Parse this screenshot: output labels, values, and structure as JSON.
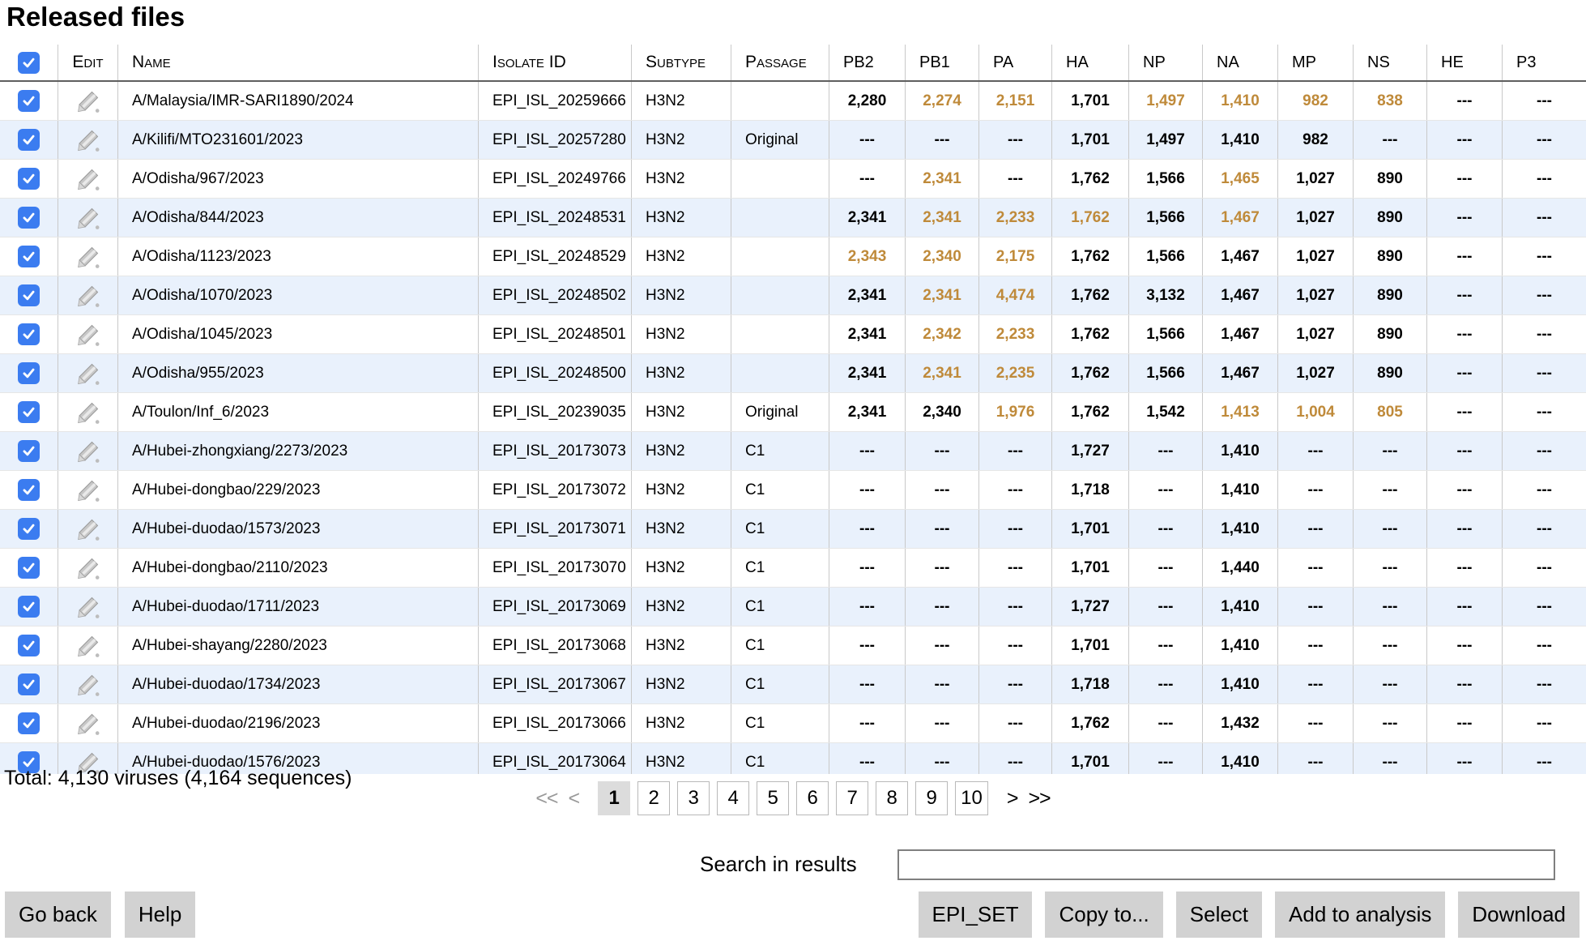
{
  "header": {
    "title": "Released files"
  },
  "colors": {
    "accent_checkbox": "#3b7cf0",
    "highlight_number": "#bf8a3a",
    "row_alt_background": "#e9f1fc"
  },
  "icons": {
    "edit": "pencil-icon",
    "checkbox": "checkmark-icon"
  },
  "table": {
    "select_all_checked": true,
    "columns": [
      {
        "label": ""
      },
      {
        "label": "Edit"
      },
      {
        "label": "Name"
      },
      {
        "label": "Isolate ID"
      },
      {
        "label": "Subtype"
      },
      {
        "label": "Passage"
      },
      {
        "label": "PB2"
      },
      {
        "label": "PB1"
      },
      {
        "label": "PA"
      },
      {
        "label": "HA"
      },
      {
        "label": "NP"
      },
      {
        "label": "NA"
      },
      {
        "label": "MP"
      },
      {
        "label": "NS"
      },
      {
        "label": "HE"
      },
      {
        "label": "P3"
      }
    ],
    "rows": [
      {
        "checked": true,
        "name": "A/Malaysia/IMR-SARI1890/2024",
        "isolate_id": "EPI_ISL_20259666",
        "subtype": "H3N2",
        "passage": "",
        "genes": [
          {
            "v": "2,280",
            "hl": false
          },
          {
            "v": "2,274",
            "hl": true
          },
          {
            "v": "2,151",
            "hl": true
          },
          {
            "v": "1,701",
            "hl": false
          },
          {
            "v": "1,497",
            "hl": true
          },
          {
            "v": "1,410",
            "hl": true
          },
          {
            "v": "982",
            "hl": true
          },
          {
            "v": "838",
            "hl": true
          },
          {
            "v": "---",
            "hl": false
          },
          {
            "v": "---",
            "hl": false
          }
        ]
      },
      {
        "checked": true,
        "name": "A/Kilifi/MTO231601/2023",
        "isolate_id": "EPI_ISL_20257280",
        "subtype": "H3N2",
        "passage": "Original",
        "genes": [
          {
            "v": "---",
            "hl": false
          },
          {
            "v": "---",
            "hl": false
          },
          {
            "v": "---",
            "hl": false
          },
          {
            "v": "1,701",
            "hl": false
          },
          {
            "v": "1,497",
            "hl": false
          },
          {
            "v": "1,410",
            "hl": false
          },
          {
            "v": "982",
            "hl": false
          },
          {
            "v": "---",
            "hl": false
          },
          {
            "v": "---",
            "hl": false
          },
          {
            "v": "---",
            "hl": false
          }
        ]
      },
      {
        "checked": true,
        "name": "A/Odisha/967/2023",
        "isolate_id": "EPI_ISL_20249766",
        "subtype": "H3N2",
        "passage": "",
        "genes": [
          {
            "v": "---",
            "hl": false
          },
          {
            "v": "2,341",
            "hl": true
          },
          {
            "v": "---",
            "hl": false
          },
          {
            "v": "1,762",
            "hl": false
          },
          {
            "v": "1,566",
            "hl": false
          },
          {
            "v": "1,465",
            "hl": true
          },
          {
            "v": "1,027",
            "hl": false
          },
          {
            "v": "890",
            "hl": false
          },
          {
            "v": "---",
            "hl": false
          },
          {
            "v": "---",
            "hl": false
          }
        ]
      },
      {
        "checked": true,
        "name": "A/Odisha/844/2023",
        "isolate_id": "EPI_ISL_20248531",
        "subtype": "H3N2",
        "passage": "",
        "genes": [
          {
            "v": "2,341",
            "hl": false
          },
          {
            "v": "2,341",
            "hl": true
          },
          {
            "v": "2,233",
            "hl": true
          },
          {
            "v": "1,762",
            "hl": true
          },
          {
            "v": "1,566",
            "hl": false
          },
          {
            "v": "1,467",
            "hl": true
          },
          {
            "v": "1,027",
            "hl": false
          },
          {
            "v": "890",
            "hl": false
          },
          {
            "v": "---",
            "hl": false
          },
          {
            "v": "---",
            "hl": false
          }
        ]
      },
      {
        "checked": true,
        "name": "A/Odisha/1123/2023",
        "isolate_id": "EPI_ISL_20248529",
        "subtype": "H3N2",
        "passage": "",
        "genes": [
          {
            "v": "2,343",
            "hl": true
          },
          {
            "v": "2,340",
            "hl": true
          },
          {
            "v": "2,175",
            "hl": true
          },
          {
            "v": "1,762",
            "hl": false
          },
          {
            "v": "1,566",
            "hl": false
          },
          {
            "v": "1,467",
            "hl": false
          },
          {
            "v": "1,027",
            "hl": false
          },
          {
            "v": "890",
            "hl": false
          },
          {
            "v": "---",
            "hl": false
          },
          {
            "v": "---",
            "hl": false
          }
        ]
      },
      {
        "checked": true,
        "name": "A/Odisha/1070/2023",
        "isolate_id": "EPI_ISL_20248502",
        "subtype": "H3N2",
        "passage": "",
        "genes": [
          {
            "v": "2,341",
            "hl": false
          },
          {
            "v": "2,341",
            "hl": true
          },
          {
            "v": "4,474",
            "hl": true
          },
          {
            "v": "1,762",
            "hl": false
          },
          {
            "v": "3,132",
            "hl": false
          },
          {
            "v": "1,467",
            "hl": false
          },
          {
            "v": "1,027",
            "hl": false
          },
          {
            "v": "890",
            "hl": false
          },
          {
            "v": "---",
            "hl": false
          },
          {
            "v": "---",
            "hl": false
          }
        ]
      },
      {
        "checked": true,
        "name": "A/Odisha/1045/2023",
        "isolate_id": "EPI_ISL_20248501",
        "subtype": "H3N2",
        "passage": "",
        "genes": [
          {
            "v": "2,341",
            "hl": false
          },
          {
            "v": "2,342",
            "hl": true
          },
          {
            "v": "2,233",
            "hl": true
          },
          {
            "v": "1,762",
            "hl": false
          },
          {
            "v": "1,566",
            "hl": false
          },
          {
            "v": "1,467",
            "hl": false
          },
          {
            "v": "1,027",
            "hl": false
          },
          {
            "v": "890",
            "hl": false
          },
          {
            "v": "---",
            "hl": false
          },
          {
            "v": "---",
            "hl": false
          }
        ]
      },
      {
        "checked": true,
        "name": "A/Odisha/955/2023",
        "isolate_id": "EPI_ISL_20248500",
        "subtype": "H3N2",
        "passage": "",
        "genes": [
          {
            "v": "2,341",
            "hl": false
          },
          {
            "v": "2,341",
            "hl": true
          },
          {
            "v": "2,235",
            "hl": true
          },
          {
            "v": "1,762",
            "hl": false
          },
          {
            "v": "1,566",
            "hl": false
          },
          {
            "v": "1,467",
            "hl": false
          },
          {
            "v": "1,027",
            "hl": false
          },
          {
            "v": "890",
            "hl": false
          },
          {
            "v": "---",
            "hl": false
          },
          {
            "v": "---",
            "hl": false
          }
        ]
      },
      {
        "checked": true,
        "name": "A/Toulon/Inf_6/2023",
        "isolate_id": "EPI_ISL_20239035",
        "subtype": "H3N2",
        "passage": "Original",
        "genes": [
          {
            "v": "2,341",
            "hl": false
          },
          {
            "v": "2,340",
            "hl": false
          },
          {
            "v": "1,976",
            "hl": true
          },
          {
            "v": "1,762",
            "hl": false
          },
          {
            "v": "1,542",
            "hl": false
          },
          {
            "v": "1,413",
            "hl": true
          },
          {
            "v": "1,004",
            "hl": true
          },
          {
            "v": "805",
            "hl": true
          },
          {
            "v": "---",
            "hl": false
          },
          {
            "v": "---",
            "hl": false
          }
        ]
      },
      {
        "checked": true,
        "name": "A/Hubei-zhongxiang/2273/2023",
        "isolate_id": "EPI_ISL_20173073",
        "subtype": "H3N2",
        "passage": "C1",
        "genes": [
          {
            "v": "---",
            "hl": false
          },
          {
            "v": "---",
            "hl": false
          },
          {
            "v": "---",
            "hl": false
          },
          {
            "v": "1,727",
            "hl": false
          },
          {
            "v": "---",
            "hl": false
          },
          {
            "v": "1,410",
            "hl": false
          },
          {
            "v": "---",
            "hl": false
          },
          {
            "v": "---",
            "hl": false
          },
          {
            "v": "---",
            "hl": false
          },
          {
            "v": "---",
            "hl": false
          }
        ]
      },
      {
        "checked": true,
        "name": "A/Hubei-dongbao/229/2023",
        "isolate_id": "EPI_ISL_20173072",
        "subtype": "H3N2",
        "passage": "C1",
        "genes": [
          {
            "v": "---",
            "hl": false
          },
          {
            "v": "---",
            "hl": false
          },
          {
            "v": "---",
            "hl": false
          },
          {
            "v": "1,718",
            "hl": false
          },
          {
            "v": "---",
            "hl": false
          },
          {
            "v": "1,410",
            "hl": false
          },
          {
            "v": "---",
            "hl": false
          },
          {
            "v": "---",
            "hl": false
          },
          {
            "v": "---",
            "hl": false
          },
          {
            "v": "---",
            "hl": false
          }
        ]
      },
      {
        "checked": true,
        "name": "A/Hubei-duodao/1573/2023",
        "isolate_id": "EPI_ISL_20173071",
        "subtype": "H3N2",
        "passage": "C1",
        "genes": [
          {
            "v": "---",
            "hl": false
          },
          {
            "v": "---",
            "hl": false
          },
          {
            "v": "---",
            "hl": false
          },
          {
            "v": "1,701",
            "hl": false
          },
          {
            "v": "---",
            "hl": false
          },
          {
            "v": "1,410",
            "hl": false
          },
          {
            "v": "---",
            "hl": false
          },
          {
            "v": "---",
            "hl": false
          },
          {
            "v": "---",
            "hl": false
          },
          {
            "v": "---",
            "hl": false
          }
        ]
      },
      {
        "checked": true,
        "name": "A/Hubei-dongbao/2110/2023",
        "isolate_id": "EPI_ISL_20173070",
        "subtype": "H3N2",
        "passage": "C1",
        "genes": [
          {
            "v": "---",
            "hl": false
          },
          {
            "v": "---",
            "hl": false
          },
          {
            "v": "---",
            "hl": false
          },
          {
            "v": "1,701",
            "hl": false
          },
          {
            "v": "---",
            "hl": false
          },
          {
            "v": "1,440",
            "hl": false
          },
          {
            "v": "---",
            "hl": false
          },
          {
            "v": "---",
            "hl": false
          },
          {
            "v": "---",
            "hl": false
          },
          {
            "v": "---",
            "hl": false
          }
        ]
      },
      {
        "checked": true,
        "name": "A/Hubei-duodao/1711/2023",
        "isolate_id": "EPI_ISL_20173069",
        "subtype": "H3N2",
        "passage": "C1",
        "genes": [
          {
            "v": "---",
            "hl": false
          },
          {
            "v": "---",
            "hl": false
          },
          {
            "v": "---",
            "hl": false
          },
          {
            "v": "1,727",
            "hl": false
          },
          {
            "v": "---",
            "hl": false
          },
          {
            "v": "1,410",
            "hl": false
          },
          {
            "v": "---",
            "hl": false
          },
          {
            "v": "---",
            "hl": false
          },
          {
            "v": "---",
            "hl": false
          },
          {
            "v": "---",
            "hl": false
          }
        ]
      },
      {
        "checked": true,
        "name": "A/Hubei-shayang/2280/2023",
        "isolate_id": "EPI_ISL_20173068",
        "subtype": "H3N2",
        "passage": "C1",
        "genes": [
          {
            "v": "---",
            "hl": false
          },
          {
            "v": "---",
            "hl": false
          },
          {
            "v": "---",
            "hl": false
          },
          {
            "v": "1,701",
            "hl": false
          },
          {
            "v": "---",
            "hl": false
          },
          {
            "v": "1,410",
            "hl": false
          },
          {
            "v": "---",
            "hl": false
          },
          {
            "v": "---",
            "hl": false
          },
          {
            "v": "---",
            "hl": false
          },
          {
            "v": "---",
            "hl": false
          }
        ]
      },
      {
        "checked": true,
        "name": "A/Hubei-duodao/1734/2023",
        "isolate_id": "EPI_ISL_20173067",
        "subtype": "H3N2",
        "passage": "C1",
        "genes": [
          {
            "v": "---",
            "hl": false
          },
          {
            "v": "---",
            "hl": false
          },
          {
            "v": "---",
            "hl": false
          },
          {
            "v": "1,718",
            "hl": false
          },
          {
            "v": "---",
            "hl": false
          },
          {
            "v": "1,410",
            "hl": false
          },
          {
            "v": "---",
            "hl": false
          },
          {
            "v": "---",
            "hl": false
          },
          {
            "v": "---",
            "hl": false
          },
          {
            "v": "---",
            "hl": false
          }
        ]
      },
      {
        "checked": true,
        "name": "A/Hubei-duodao/2196/2023",
        "isolate_id": "EPI_ISL_20173066",
        "subtype": "H3N2",
        "passage": "C1",
        "genes": [
          {
            "v": "---",
            "hl": false
          },
          {
            "v": "---",
            "hl": false
          },
          {
            "v": "---",
            "hl": false
          },
          {
            "v": "1,762",
            "hl": false
          },
          {
            "v": "---",
            "hl": false
          },
          {
            "v": "1,432",
            "hl": false
          },
          {
            "v": "---",
            "hl": false
          },
          {
            "v": "---",
            "hl": false
          },
          {
            "v": "---",
            "hl": false
          },
          {
            "v": "---",
            "hl": false
          }
        ]
      },
      {
        "checked": true,
        "name": "A/Hubei-duodao/1576/2023",
        "isolate_id": "EPI_ISL_20173064",
        "subtype": "H3N2",
        "passage": "C1",
        "genes": [
          {
            "v": "---",
            "hl": false
          },
          {
            "v": "---",
            "hl": false
          },
          {
            "v": "---",
            "hl": false
          },
          {
            "v": "1,701",
            "hl": false
          },
          {
            "v": "---",
            "hl": false
          },
          {
            "v": "1,410",
            "hl": false
          },
          {
            "v": "---",
            "hl": false
          },
          {
            "v": "---",
            "hl": false
          },
          {
            "v": "---",
            "hl": false
          },
          {
            "v": "---",
            "hl": false
          }
        ]
      }
    ]
  },
  "footer": {
    "total_text": "Total: 4,130 viruses (4,164 sequences)",
    "pagination": {
      "first": "<<",
      "prev": "<",
      "pages": [
        "1",
        "2",
        "3",
        "4",
        "5",
        "6",
        "7",
        "8",
        "9",
        "10"
      ],
      "active_page": "1",
      "next": ">",
      "last": ">>"
    },
    "search": {
      "label": "Search in results",
      "value": ""
    },
    "buttons_left": [
      {
        "label": "Go back"
      },
      {
        "label": "Help"
      }
    ],
    "buttons_right": [
      {
        "label": "EPI_SET"
      },
      {
        "label": "Copy to..."
      },
      {
        "label": "Select"
      },
      {
        "label": "Add to analysis"
      },
      {
        "label": "Download"
      }
    ]
  }
}
